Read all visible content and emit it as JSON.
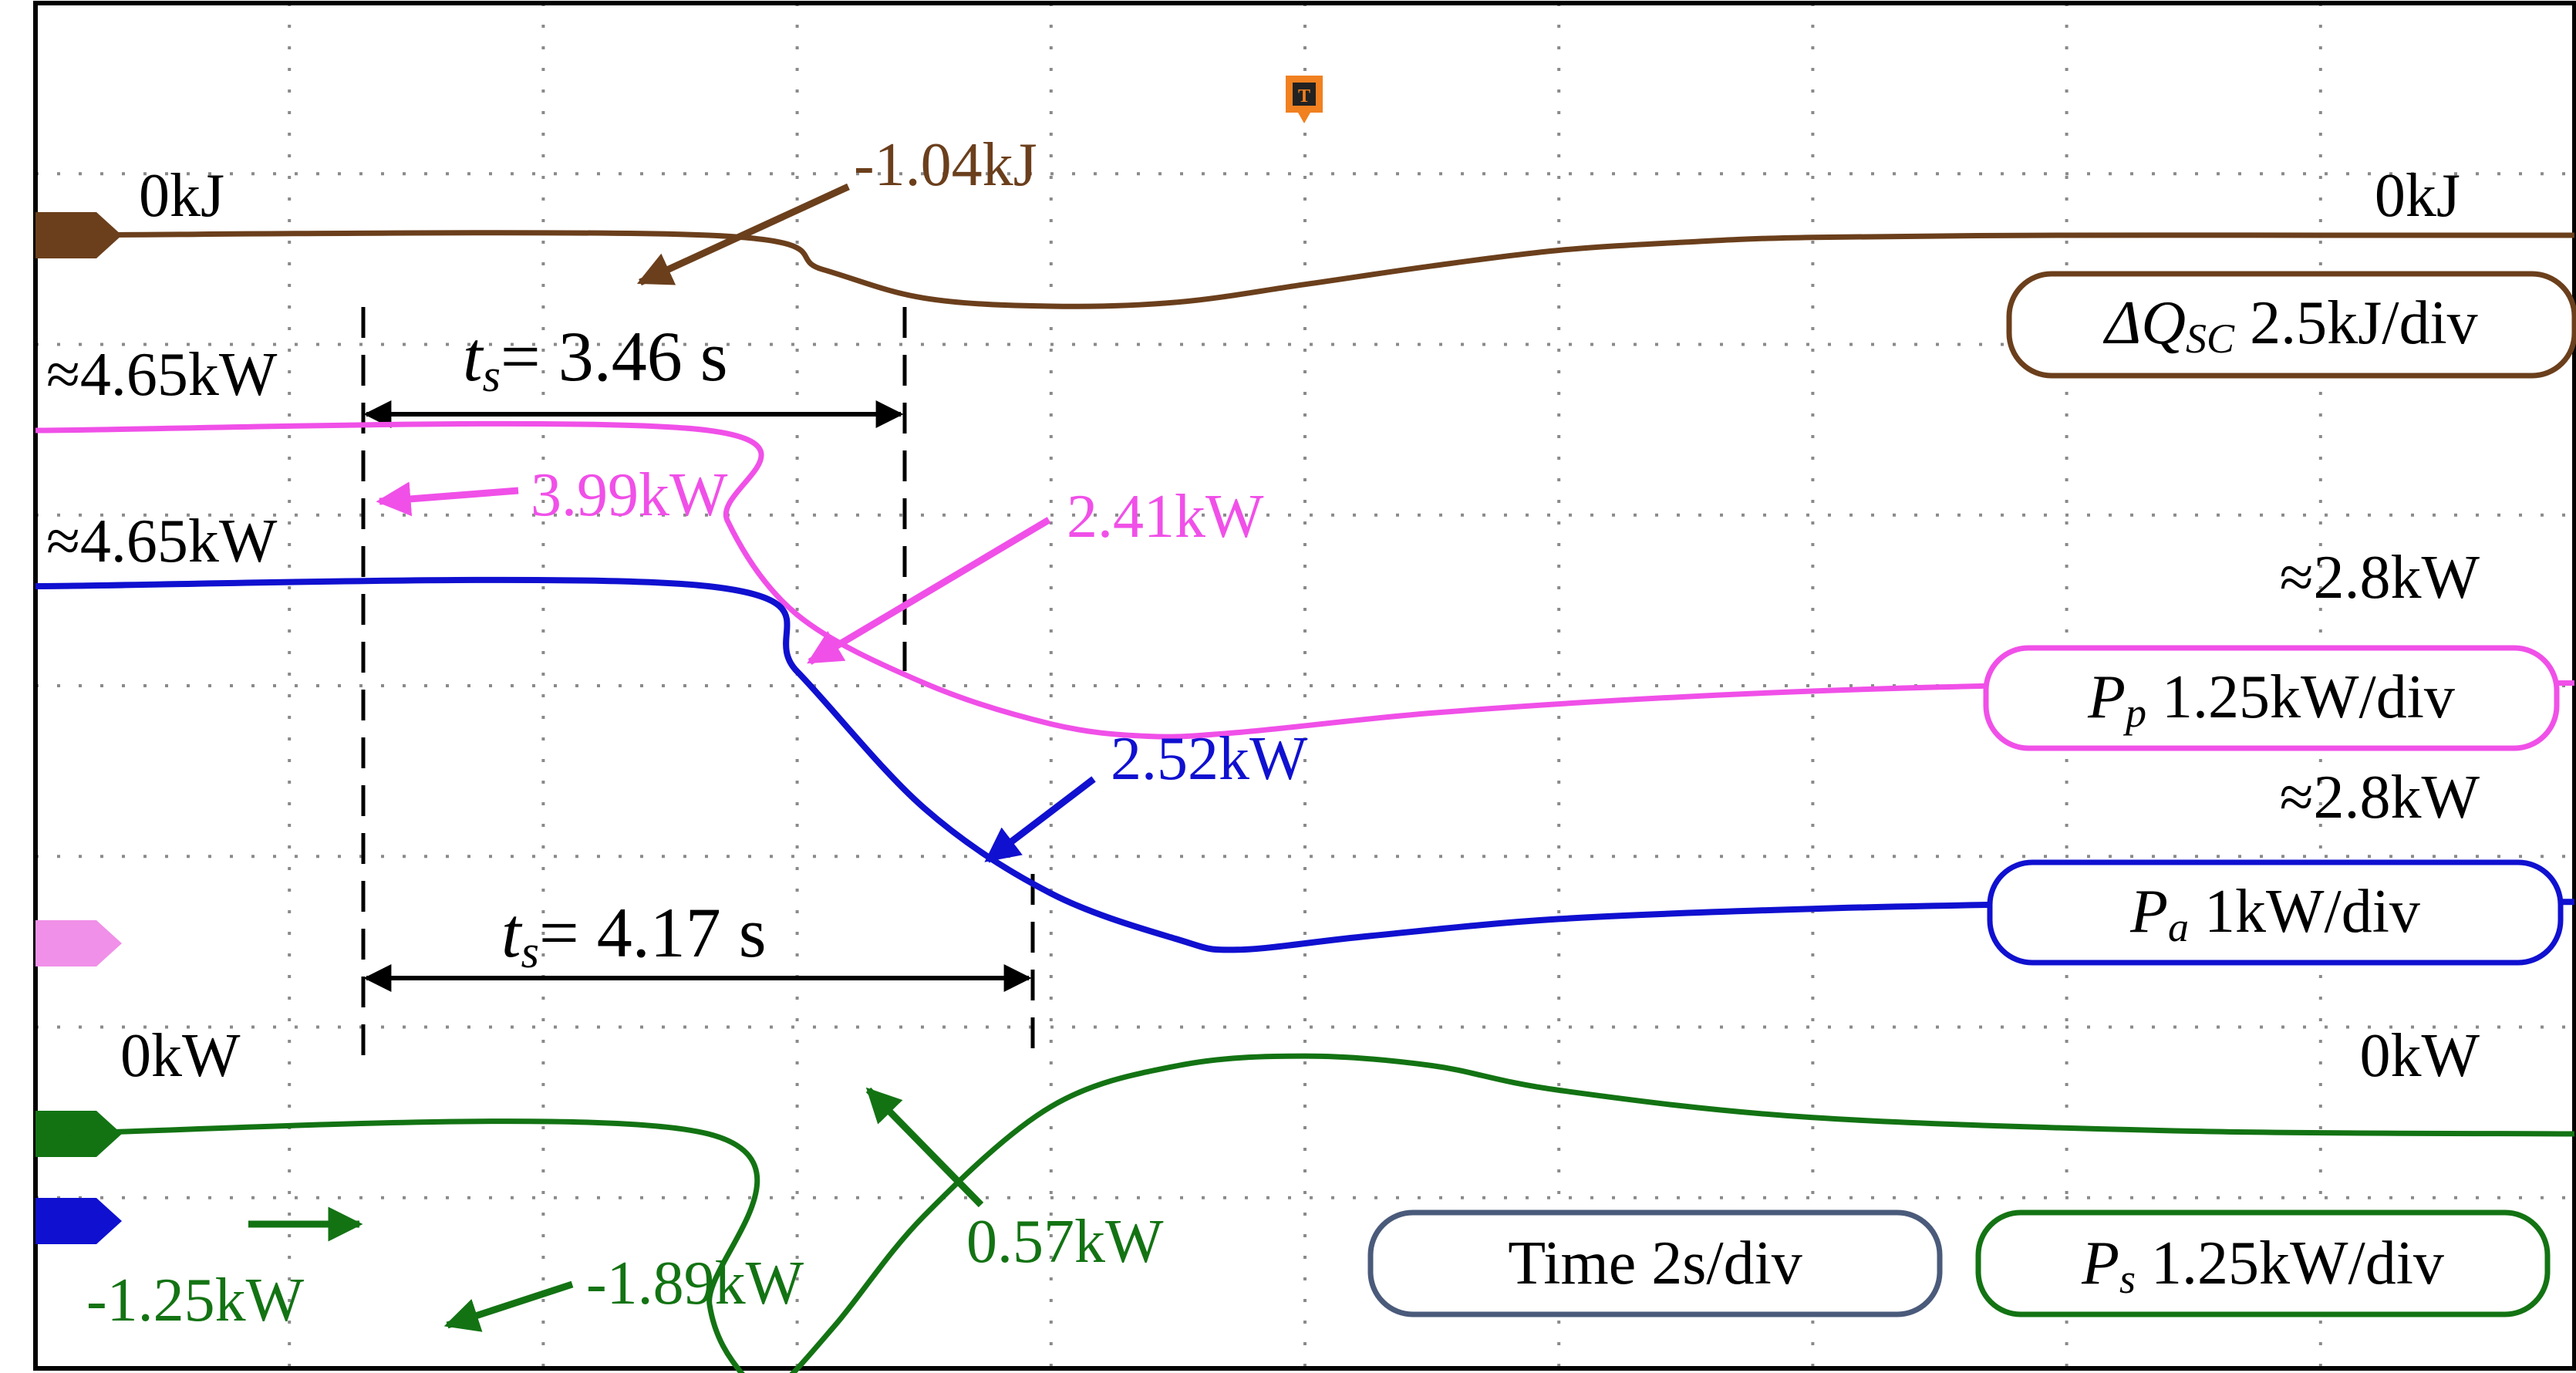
{
  "colors": {
    "energy": "#6b3f1c",
    "pp": "#f050e8",
    "pa": "#1010d0",
    "ps": "#137313",
    "time_box": "#4a5a7a",
    "grid": "#8a8a8a",
    "frame": "#000000",
    "trigger": "#f08020"
  },
  "trigger": {
    "label": "T"
  },
  "labels": {
    "energy_start": "0kJ",
    "energy_end": "0kJ",
    "energy_min": "-1.04kJ",
    "pp_start": "≈4.65kW",
    "pp_drop": "3.99kW",
    "pp_min": "2.41kW",
    "pp_end": "≈2.8kW",
    "pa_start": "≈4.65kW",
    "pa_min": "2.52kW",
    "pa_end": "≈2.8kW",
    "ps_start": "0kW",
    "ps_end": "0kW",
    "ps_step": "-1.25kW",
    "ps_min": "-1.89kW",
    "ps_max": "0.57kW",
    "ts1_var": "t",
    "ts1_sub": "s",
    "ts1_val": "= 3.46 s",
    "ts2_var": "t",
    "ts2_sub": "s",
    "ts2_val": "= 4.17 s"
  },
  "legend": {
    "energy": {
      "sym": "ΔQ",
      "sub": "SC",
      "scale": " 2.5kJ/div"
    },
    "pp": {
      "sym": "P",
      "sub": "p",
      "scale": " 1.25kW/div"
    },
    "pa": {
      "sym": "P",
      "sub": "a",
      "scale": " 1kW/div"
    },
    "time": {
      "text": "Time 2s/div"
    },
    "ps": {
      "sym": "P",
      "sub": "s",
      "scale": " 1.25kW/div"
    }
  },
  "chart_data": {
    "type": "line",
    "title": "",
    "time_div_s": 2,
    "xlim_s": [
      0,
      20
    ],
    "step_time_s": 5.3,
    "settling_times_s": [
      3.46,
      4.17
    ],
    "series": [
      {
        "key": "energy",
        "unit": "kJ",
        "scale_per_div": 2.5,
        "x": [
          0,
          5.3,
          6.2,
          7.0,
          8.0,
          9.0,
          10.0,
          11.0,
          12.0,
          13.0,
          14.0,
          16.0,
          18.0,
          20.0
        ],
        "y": [
          0,
          0,
          -0.5,
          -0.92,
          -1.04,
          -0.98,
          -0.72,
          -0.45,
          -0.22,
          -0.1,
          -0.03,
          0,
          0,
          0
        ]
      },
      {
        "key": "pp",
        "unit": "kW",
        "scale_per_div": 1.25,
        "x": [
          0,
          5.3,
          5.45,
          6.0,
          7.0,
          8.0,
          8.76,
          9.5,
          11.0,
          13.0,
          15.0,
          17.0,
          20.0
        ],
        "y": [
          4.65,
          4.65,
          3.99,
          3.3,
          2.8,
          2.5,
          2.41,
          2.44,
          2.58,
          2.7,
          2.77,
          2.8,
          2.8
        ]
      },
      {
        "key": "pa",
        "unit": "kW",
        "scale_per_div": 1,
        "x": [
          0,
          5.3,
          6.0,
          7.0,
          8.0,
          9.0,
          9.47,
          10.5,
          12.0,
          14.0,
          16.0,
          18.0,
          20.0
        ],
        "y": [
          4.65,
          4.65,
          4.15,
          3.35,
          2.85,
          2.58,
          2.52,
          2.6,
          2.7,
          2.76,
          2.79,
          2.8,
          2.8
        ]
      },
      {
        "key": "ps",
        "unit": "kW",
        "scale_per_div": 1.25,
        "x": [
          0,
          5.3,
          5.31,
          5.6,
          5.8,
          6.3,
          7.0,
          8.0,
          9.0,
          10.0,
          11.0,
          12.0,
          14.0,
          17.0,
          20.0
        ],
        "y": [
          0,
          0,
          -1.25,
          -1.8,
          -1.89,
          -1.4,
          -0.6,
          0.2,
          0.5,
          0.57,
          0.5,
          0.32,
          0.12,
          0.02,
          0
        ]
      }
    ]
  }
}
